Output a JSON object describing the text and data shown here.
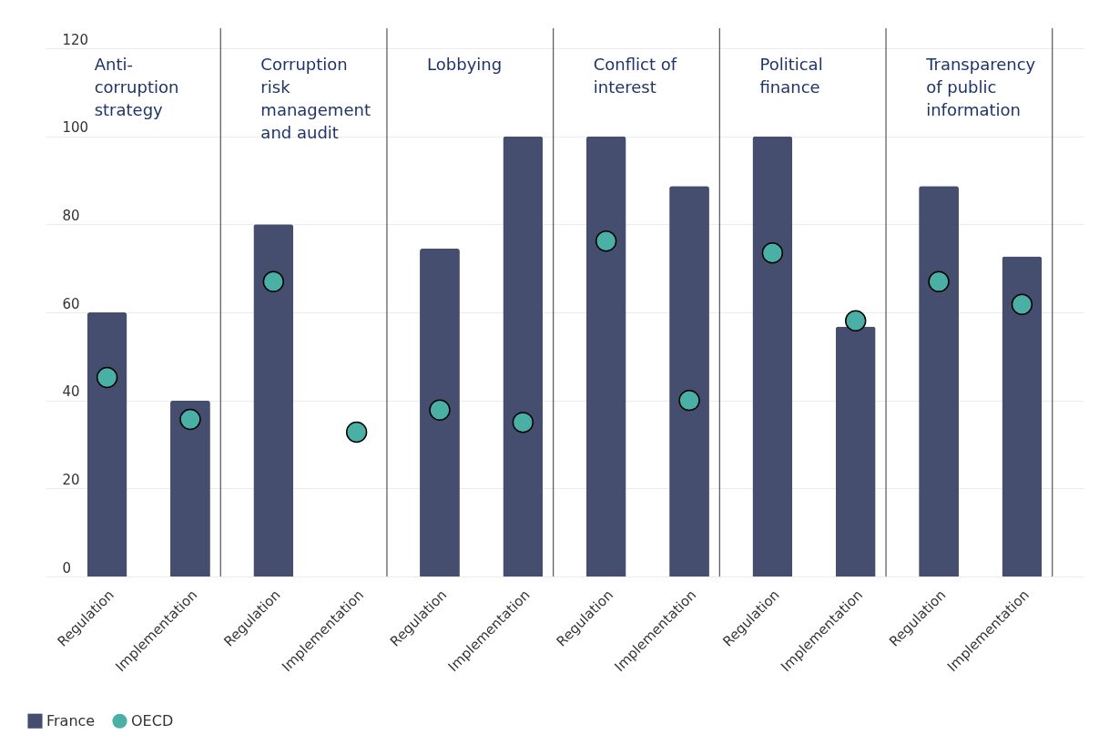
{
  "chart_data": {
    "type": "bar",
    "categories": [
      "Regulation",
      "Implementation",
      "Regulation",
      "Implementation",
      "Regulation",
      "Implementation",
      "Regulation",
      "Implementation",
      "Regulation",
      "Implementation",
      "Regulation",
      "Implementation"
    ],
    "series": [
      {
        "name": "France",
        "color": "#454e6e",
        "values": [
          60,
          40,
          80,
          null,
          74.5,
          100,
          100,
          88.7,
          100,
          56.8,
          88.7,
          72.7
        ]
      },
      {
        "name": "OECD",
        "type": "scatter",
        "marker": "circle",
        "color": "#4aafa5",
        "values": [
          45.2,
          35.7,
          67,
          32.8,
          37.8,
          35,
          76.2,
          40,
          73.5,
          58.1,
          67,
          61.8
        ]
      }
    ],
    "annotations": [
      "Anti-\ncorruption\nstrategy",
      "Corruption\nrisk\nmanagement\nand audit",
      "Lobbying",
      "Conflict of\ninterest",
      "Political\nfinance",
      "Transparency\nof public\ninformation"
    ],
    "ylim": [
      0,
      120
    ],
    "yticks": [
      0,
      20,
      40,
      60,
      80,
      100,
      120
    ],
    "grid": "y",
    "legend": "bottom left"
  }
}
